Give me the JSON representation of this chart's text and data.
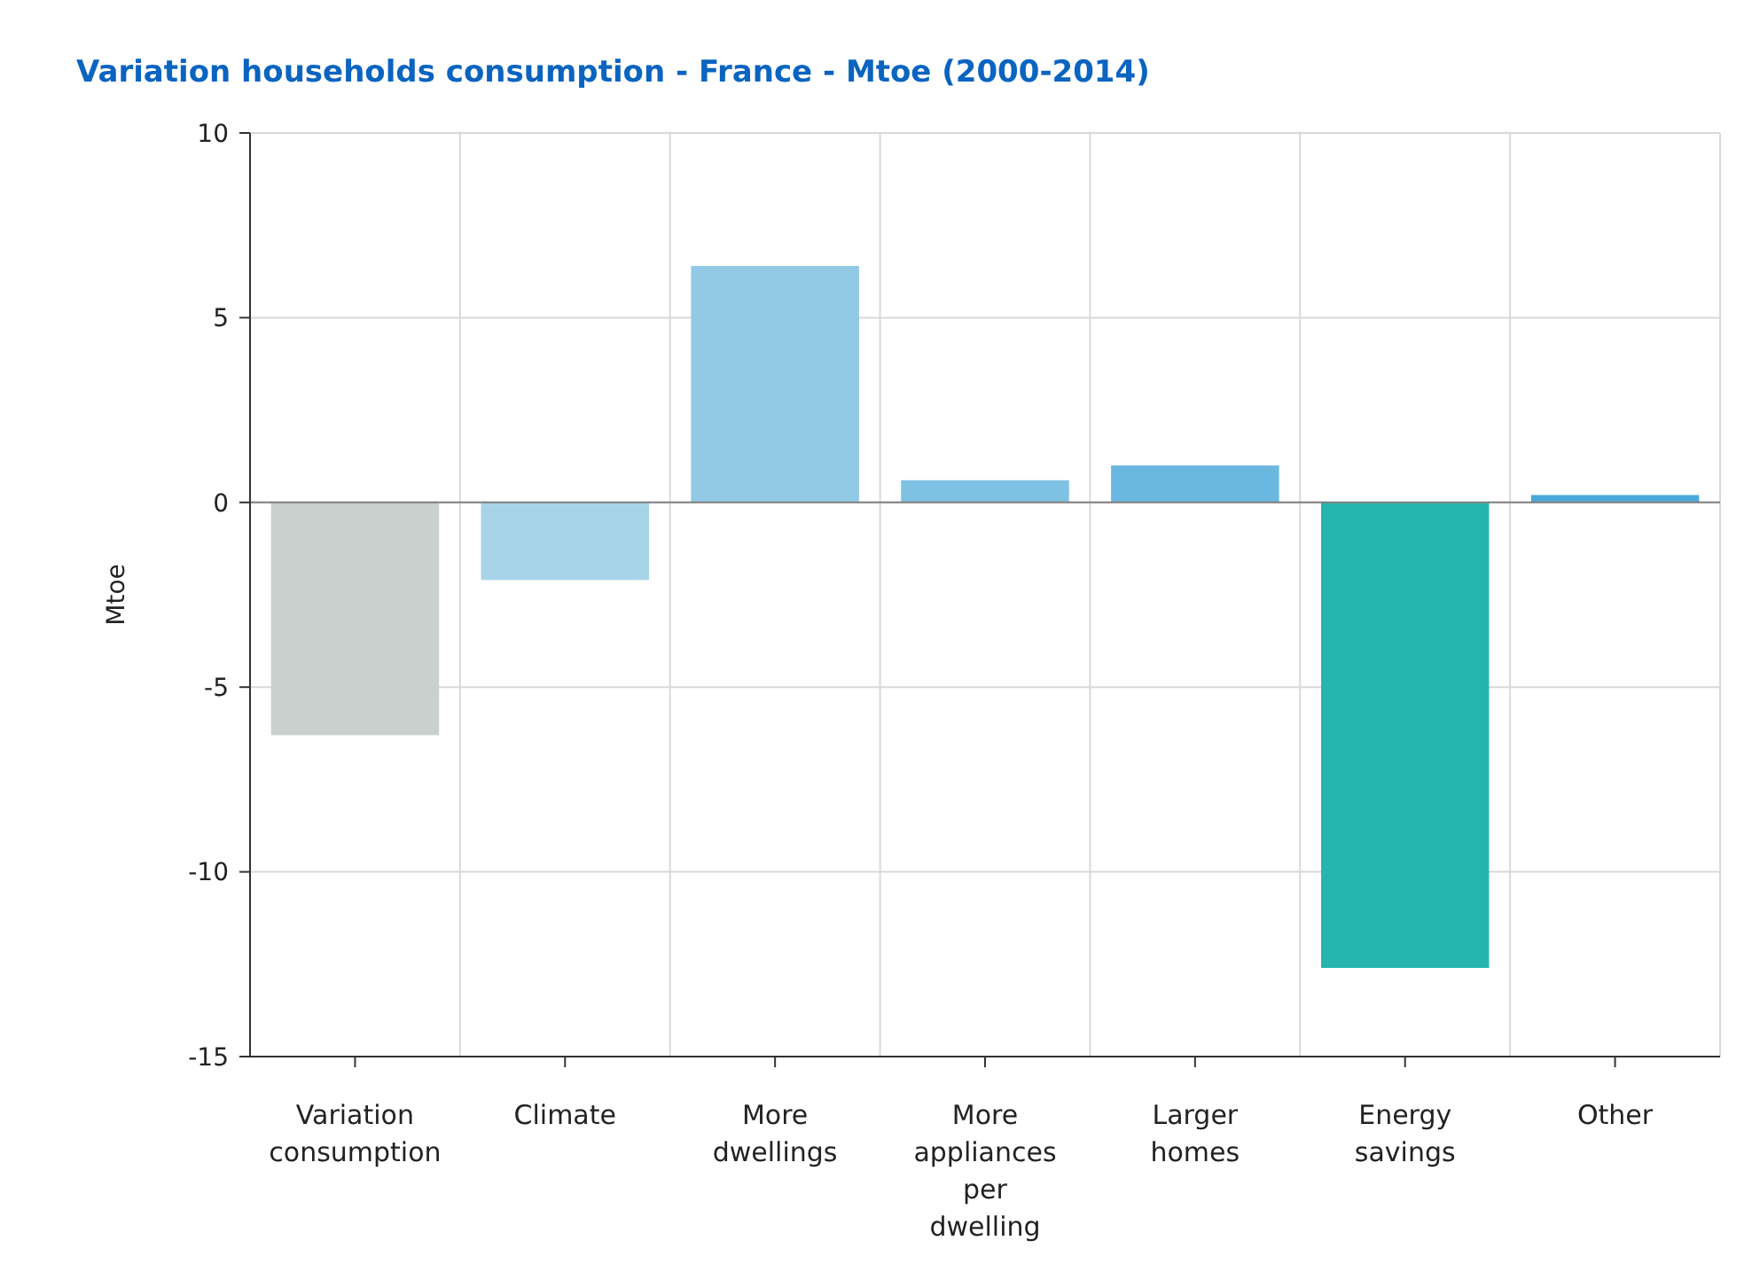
{
  "chart_data": {
    "type": "bar",
    "title": "Variation households consumption - France - Mtoe (2000-2014)",
    "ylabel": "Mtoe",
    "categories": [
      "Variation consumption",
      "Climate",
      "More dwellings",
      "More appliances per dwelling",
      "Larger homes",
      "Energy savings",
      "Other"
    ],
    "values": [
      -6.3,
      -2.1,
      6.4,
      0.6,
      1.0,
      -12.6,
      0.2
    ],
    "colors": [
      "#c9d0ce",
      "#a8d4ea",
      "#92c9e4",
      "#7fc1e3",
      "#6ab8df",
      "#26b5ae",
      "#4aa8d8"
    ],
    "ylim": [
      -15,
      10
    ],
    "yticks": [
      -15,
      -10,
      -5,
      0,
      5,
      10
    ],
    "grid": true
  }
}
